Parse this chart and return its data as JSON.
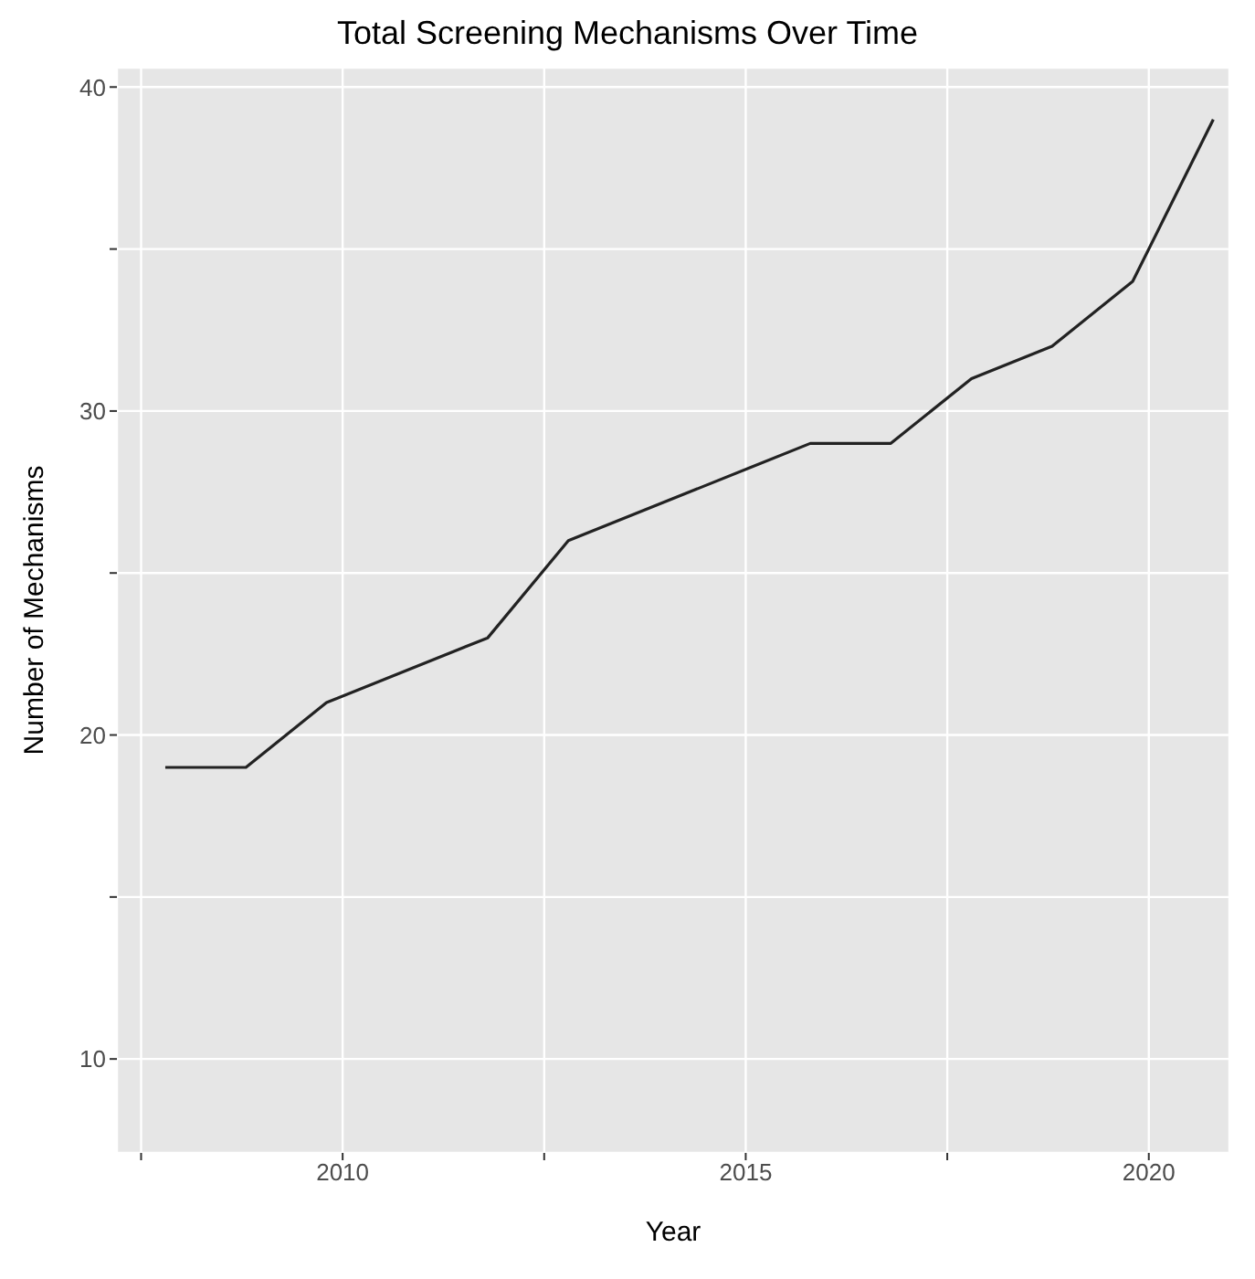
{
  "chart_data": {
    "type": "line",
    "title": "Total Screening Mechanisms Over Time",
    "xlabel": "Year",
    "ylabel": "Number of Mechanisms",
    "x": [
      2007.8,
      2008.8,
      2009.8,
      2011.8,
      2012.8,
      2015.8,
      2016.8,
      2017.8,
      2018.8,
      2019.8,
      2020.8
    ],
    "series": [
      {
        "color": "#222222",
        "values": [
          19,
          19,
          21,
          23,
          26,
          29,
          29,
          31,
          32,
          34,
          39
        ]
      }
    ],
    "xlim": [
      2007.2,
      2021.0
    ],
    "xticks": [
      {
        "value": 2007.5,
        "label": null
      },
      2010,
      {
        "value": 2012.5,
        "label": null
      },
      2015,
      {
        "value": 2017.5,
        "label": null
      },
      2020
    ],
    "ylim": [
      7.1,
      40.6
    ],
    "yticks": [
      10,
      {
        "value": 15,
        "label": null
      },
      20,
      {
        "value": 25,
        "label": null
      },
      30,
      {
        "value": 35,
        "label": null
      },
      40
    ],
    "grid": true,
    "marker": "none",
    "line_style": "solid"
  }
}
